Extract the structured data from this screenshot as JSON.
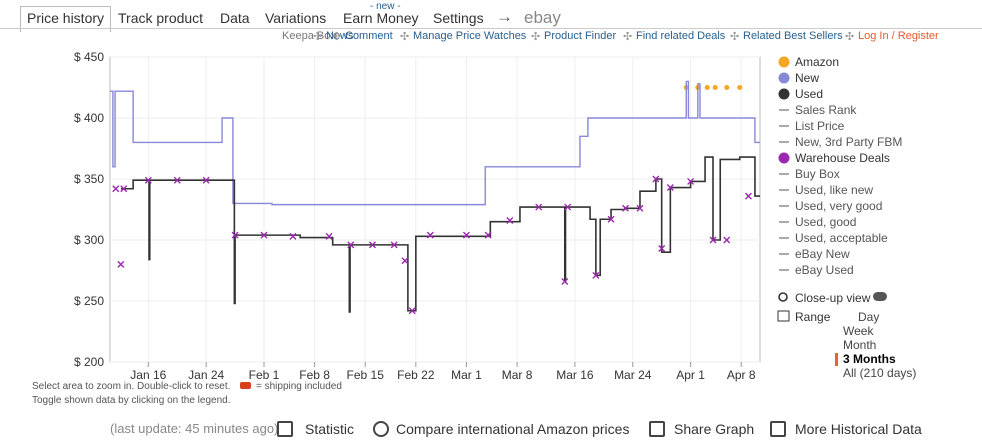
{
  "tabs": [
    "Price history",
    "Track product",
    "Data",
    "Variations",
    "Earn Money",
    "Settings",
    "→",
    "ebay"
  ],
  "tab_badge": "- new -",
  "links": [
    "Keepa Box",
    "News",
    "Comment",
    "Manage Price Watches",
    "Product Finder",
    "Find related Deals",
    "Related Best Sellers",
    "Log In / Register"
  ],
  "chart_data": {
    "type": "line",
    "xlim": [
      10.7,
      100.6
    ],
    "xticks": [
      {
        "value": 16,
        "label": "Jan 16"
      },
      {
        "value": 24,
        "label": "Jan 24"
      },
      {
        "value": 32,
        "label": "Feb 1"
      },
      {
        "value": 39,
        "label": "Feb 8"
      },
      {
        "value": 46,
        "label": "Feb 15"
      },
      {
        "value": 53,
        "label": "Feb 22"
      },
      {
        "value": 60,
        "label": "Mar 1"
      },
      {
        "value": 67,
        "label": "Mar 8"
      },
      {
        "value": 75,
        "label": "Mar 16"
      },
      {
        "value": 83,
        "label": "Mar 24"
      },
      {
        "value": 91,
        "label": "Apr 1"
      },
      {
        "value": 98,
        "label": "Apr 8"
      }
    ],
    "ylim": [
      200,
      450
    ],
    "yticks": [
      {
        "value": 200,
        "label": "$ 200"
      },
      {
        "value": 250,
        "label": "$ 250"
      },
      {
        "value": 300,
        "label": "$ 300"
      },
      {
        "value": 350,
        "label": "$ 350"
      },
      {
        "value": 400,
        "label": "$ 400"
      },
      {
        "value": 450,
        "label": "$ 450"
      }
    ],
    "grid": true,
    "series": [
      {
        "name": "Amazon",
        "color": "#f5a623",
        "style": "dots",
        "x": [
          90.4,
          92.0,
          93.3,
          94.4,
          96.0,
          97.8
        ],
        "values": [
          425,
          425,
          425,
          425,
          425,
          425
        ]
      },
      {
        "name": "New",
        "color": "#8888d8",
        "style": "step",
        "x": [
          10.7,
          11.1,
          11.4,
          13.9,
          26.2,
          27.7,
          33.1,
          62.6,
          75.7,
          76.8,
          90.4,
          90.7,
          92.0,
          92.3,
          99.9
        ],
        "values": [
          422,
          360,
          422,
          380,
          400,
          330,
          329,
          360,
          385,
          400,
          430,
          400,
          428,
          400,
          380
        ]
      },
      {
        "name": "Used",
        "color": "#333333",
        "style": "step",
        "x": [
          12.2,
          13.9,
          16.1,
          16.2,
          27.9,
          28.0,
          37.0,
          41.5,
          43.8,
          43.9,
          51.9,
          53.0,
          63.3,
          67.4,
          73.6,
          73.7,
          77.1,
          77.9,
          78.5,
          80.0,
          81.9,
          84.0,
          86.2,
          87.0,
          88.2,
          91.0,
          93.0,
          94.1,
          95.1,
          97.8,
          99.9
        ],
        "values": [
          342,
          349,
          284,
          349,
          248,
          304,
          302,
          296,
          241,
          296,
          242,
          303,
          315,
          327,
          266,
          327,
          317,
          271,
          317,
          325,
          326,
          340,
          350,
          290,
          343,
          348,
          368,
          300,
          366,
          368,
          336
        ]
      },
      {
        "name": "Warehouse Deals",
        "color": "#9c27b0",
        "style": "cross",
        "x": [
          11.5,
          12.2,
          12.6,
          16.0,
          20.0,
          24.0,
          28.0,
          32.0,
          36.0,
          41.0,
          44.0,
          47.0,
          50.0,
          51.5,
          52.5,
          55.0,
          60.0,
          63.0,
          66.0,
          70.0,
          73.6,
          74.0,
          77.9,
          80.0,
          82.0,
          84.0,
          86.2,
          87.0,
          88.2,
          91.0,
          94.1,
          96.0,
          99.0
        ],
        "values": [
          342,
          280,
          342,
          349,
          349,
          349,
          304,
          304,
          303,
          303,
          296,
          296,
          296,
          283,
          242,
          304,
          304,
          304,
          316,
          327,
          266,
          327,
          271,
          317,
          326,
          326,
          350,
          293,
          343,
          348,
          300,
          300,
          336
        ]
      }
    ]
  },
  "legend_more": [
    "Sales Rank",
    "List Price",
    "New, 3rd Party FBM",
    "Buy Box",
    "Used, like new",
    "Used, very good",
    "Used, good",
    "Used, acceptable",
    "eBay New",
    "eBay Used"
  ],
  "notes": [
    "Select area to zoom in. Double-click to reset.",
    "= shipping included",
    "Toggle shown data by clicking on the legend."
  ],
  "closeup": "Close-up view",
  "range": {
    "label": "Range",
    "options": [
      "Day",
      "Week",
      "Month",
      "3 Months",
      "All (210 days)"
    ],
    "selected": 3
  },
  "footer": {
    "update": "(last update: 45 minutes ago)",
    "actions": [
      "Statistic",
      "Compare international Amazon prices",
      "Share Graph",
      "More Historical Data"
    ]
  }
}
